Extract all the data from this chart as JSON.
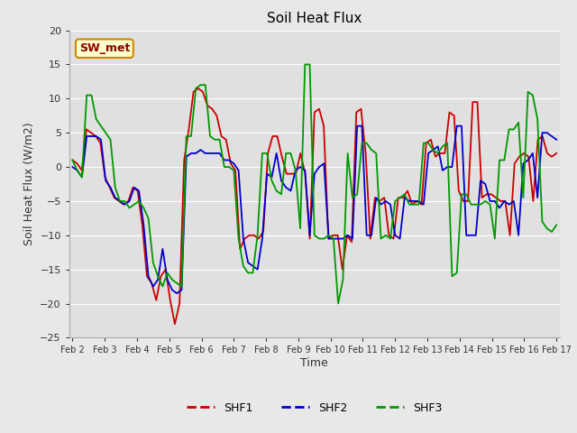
{
  "title": "Soil Heat Flux",
  "xlabel": "Time",
  "ylabel": "Soil Heat Flux (W/m2)",
  "ylim": [
    -25,
    20
  ],
  "yticks": [
    -25,
    -20,
    -15,
    -10,
    -5,
    0,
    5,
    10,
    15,
    20
  ],
  "figure_bg": "#e8e8e8",
  "plot_bg": "#e0e0e0",
  "grid_color": "#ffffff",
  "annotation_text": "SW_met",
  "annotation_fg": "#8B0000",
  "annotation_bg": "#ffffcc",
  "annotation_border": "#cc8800",
  "x_labels": [
    "Feb 2",
    "Feb 3",
    "Feb 4",
    "Feb 5",
    "Feb 6",
    "Feb 7",
    "Feb 8",
    "Feb 9",
    "Feb 10",
    "Feb 11",
    "Feb 12",
    "Feb 13",
    "Feb 14",
    "Feb 15",
    "Feb 16",
    "Feb 17"
  ],
  "shf1_color": "#cc0000",
  "shf2_color": "#0000cc",
  "shf3_color": "#009900",
  "shf1": [
    1.0,
    0.5,
    -0.5,
    5.5,
    5.0,
    4.5,
    3.5,
    -1.5,
    -3.0,
    -4.5,
    -5.0,
    -5.5,
    -5.0,
    -3.0,
    -3.5,
    -8.5,
    -16.0,
    -17.0,
    -19.5,
    -16.0,
    -15.0,
    -19.5,
    -23.0,
    -20.0,
    1.0,
    5.5,
    11.0,
    11.5,
    11.0,
    9.0,
    8.5,
    7.5,
    4.5,
    4.0,
    0.5,
    -0.5,
    -12.0,
    -10.5,
    -10.0,
    -10.0,
    -10.5,
    -9.5,
    2.0,
    4.5,
    4.5,
    1.5,
    -1.0,
    -1.0,
    -1.0,
    2.0,
    -1.0,
    -10.5,
    8.0,
    8.5,
    6.0,
    -10.5,
    -10.0,
    -10.0,
    -15.0,
    -10.0,
    -11.0,
    8.0,
    8.5,
    2.0,
    -10.5,
    -4.5,
    -5.0,
    -4.5,
    -10.0,
    -10.5,
    -4.5,
    -4.5,
    -3.5,
    -5.5,
    -5.0,
    -5.5,
    3.5,
    4.0,
    1.5,
    2.0,
    2.0,
    8.0,
    7.5,
    -3.5,
    -5.0,
    -5.0,
    9.5,
    9.5,
    -4.5,
    -4.0,
    -4.0,
    -4.5,
    -5.0,
    -5.0,
    -10.0,
    0.5,
    1.5,
    2.0,
    1.5,
    -5.0,
    4.0,
    4.5,
    2.0,
    1.5,
    2.0
  ],
  "shf2": [
    0.0,
    -0.5,
    -1.5,
    4.5,
    4.5,
    4.5,
    4.0,
    -2.0,
    -3.0,
    -4.5,
    -5.0,
    -5.5,
    -5.0,
    -3.0,
    -3.5,
    -8.5,
    -16.0,
    -17.5,
    -16.5,
    -12.0,
    -16.5,
    -18.0,
    -18.5,
    -18.0,
    1.5,
    2.0,
    2.0,
    2.5,
    2.0,
    2.0,
    2.0,
    2.0,
    1.0,
    1.0,
    0.5,
    -0.5,
    -10.5,
    -14.0,
    -14.5,
    -15.0,
    -10.5,
    -1.0,
    -1.5,
    2.0,
    -2.0,
    -3.0,
    -3.5,
    -0.5,
    0.0,
    -0.5,
    -10.0,
    -1.0,
    0.0,
    0.5,
    -10.5,
    -10.5,
    -10.5,
    -10.5,
    -10.0,
    -10.5,
    6.0,
    6.0,
    -10.0,
    -10.0,
    -4.5,
    -5.5,
    -5.0,
    -5.5,
    -10.0,
    -10.5,
    -4.5,
    -5.0,
    -5.0,
    -5.0,
    -5.5,
    2.0,
    2.5,
    3.0,
    -0.5,
    0.0,
    0.0,
    6.0,
    6.0,
    -10.0,
    -10.0,
    -10.0,
    -2.0,
    -2.5,
    -5.0,
    -5.0,
    -6.0,
    -5.0,
    -5.5,
    -5.0,
    -10.0,
    0.5,
    1.0,
    2.0,
    -4.5,
    5.0,
    5.0,
    4.5,
    4.0
  ],
  "shf3": [
    1.0,
    -0.5,
    -1.5,
    10.5,
    10.5,
    7.0,
    6.0,
    5.0,
    4.0,
    -3.0,
    -5.0,
    -5.0,
    -6.0,
    -5.5,
    -5.0,
    -6.0,
    -7.5,
    -14.0,
    -16.0,
    -17.5,
    -15.5,
    -16.5,
    -17.0,
    -17.5,
    4.5,
    4.5,
    11.5,
    12.0,
    12.0,
    4.5,
    4.0,
    4.0,
    0.0,
    0.0,
    -0.5,
    -10.5,
    -14.5,
    -15.5,
    -15.5,
    -10.0,
    2.0,
    2.0,
    -2.0,
    -3.5,
    -4.0,
    2.0,
    2.0,
    -0.5,
    -9.0,
    15.0,
    15.0,
    -10.0,
    -10.5,
    -10.5,
    -10.0,
    -10.5,
    -20.0,
    -16.5,
    2.0,
    -4.5,
    -4.0,
    3.5,
    3.5,
    2.5,
    2.0,
    -10.5,
    -10.0,
    -10.5,
    -5.0,
    -4.5,
    -4.0,
    -5.5,
    -5.5,
    -5.5,
    3.5,
    3.5,
    2.5,
    2.0,
    3.0,
    3.5,
    -16.0,
    -15.5,
    -4.0,
    -4.0,
    -5.5,
    -5.5,
    -5.5,
    -5.0,
    -5.5,
    -10.5,
    1.0,
    1.0,
    5.5,
    5.5,
    6.5,
    -4.5,
    11.0,
    10.5,
    7.0,
    -8.0,
    -9.0,
    -9.5,
    -8.5
  ]
}
